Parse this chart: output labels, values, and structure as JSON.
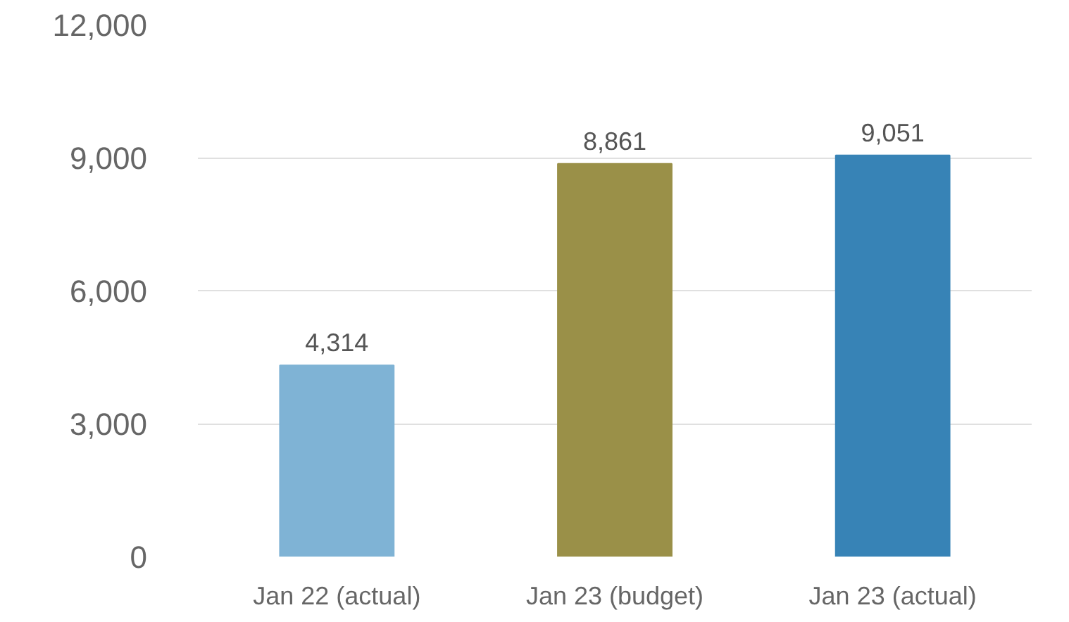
{
  "chart_data": {
    "type": "bar",
    "categories": [
      "Jan 22 (actual)",
      "Jan 23 (budget)",
      "Jan 23 (actual)"
    ],
    "values": [
      4314,
      8861,
      9051
    ],
    "colors": [
      "#7fb3d5",
      "#9a9048",
      "#3783b6"
    ],
    "ylim": [
      0,
      12000
    ],
    "yticks": [
      {
        "value": 0,
        "label": "0"
      },
      {
        "value": 3000,
        "label": "3,000"
      },
      {
        "value": 6000,
        "label": "6,000"
      },
      {
        "value": 9000,
        "label": "9,000"
      },
      {
        "value": 12000,
        "label": "12,000"
      }
    ],
    "value_labels": [
      "4,314",
      "8,861",
      "9,051"
    ],
    "grid": "y"
  }
}
